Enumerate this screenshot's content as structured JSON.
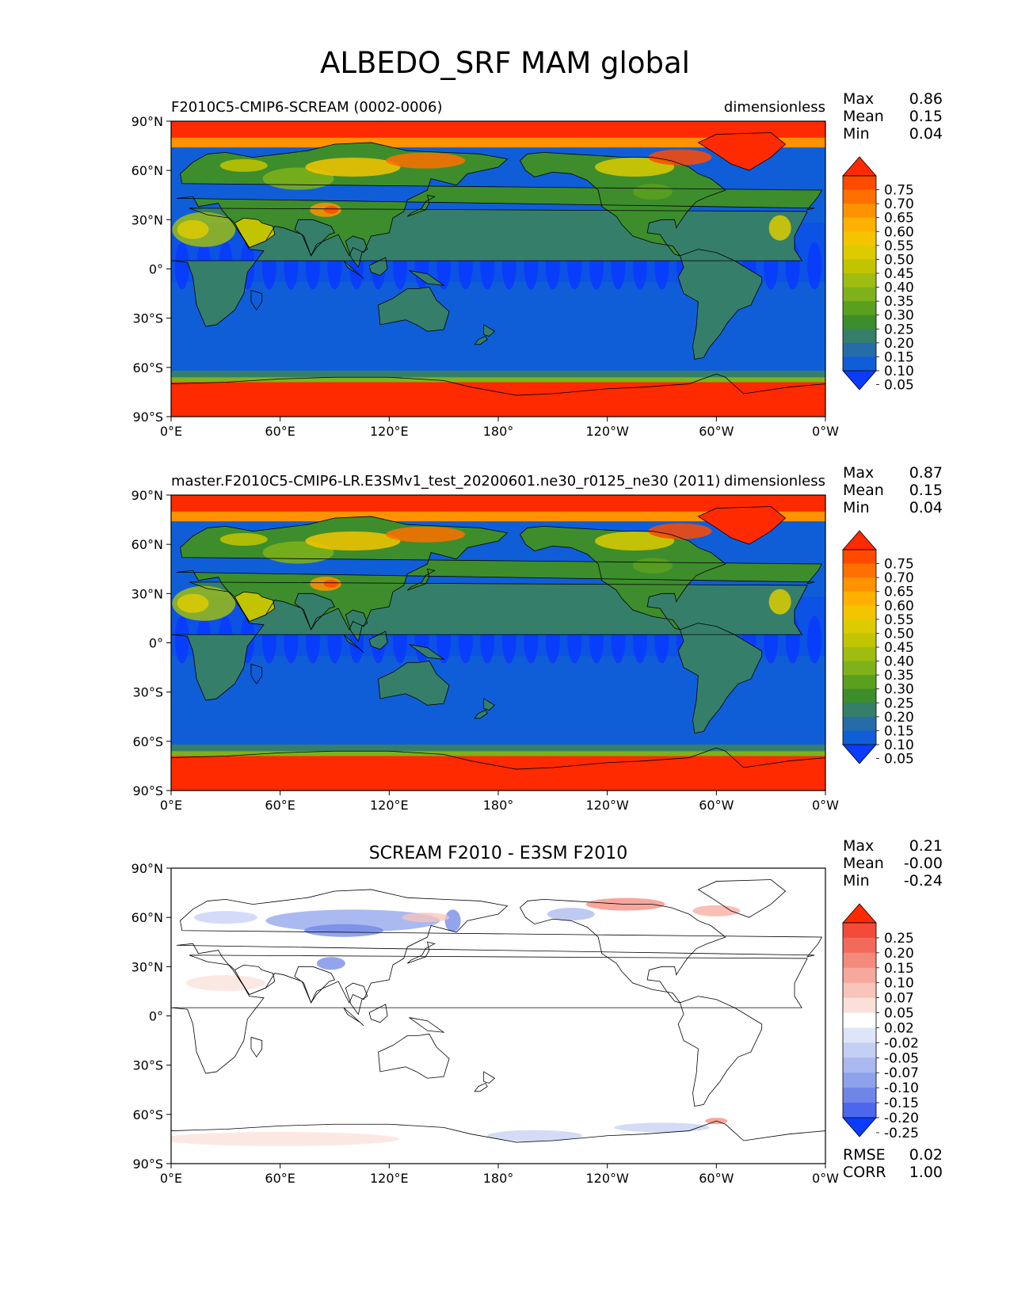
{
  "figure": {
    "title": "ALBEDO_SRF MAM global"
  },
  "chart_data": [
    {
      "type": "heatmap",
      "title_left": "F2010C5-CMIP6-SCREAM (0002-0006)",
      "title_right": "dimensionless",
      "xticks": [
        "0°E",
        "60°E",
        "120°E",
        "180°",
        "120°W",
        "60°W",
        "0°W"
      ],
      "yticks": [
        "90°N",
        "60°N",
        "30°N",
        "0°",
        "30°S",
        "60°S",
        "90°S"
      ],
      "xlim": [
        0,
        360
      ],
      "ylim": [
        -90,
        90
      ],
      "stats": [
        {
          "label": "Max",
          "value": "0.86"
        },
        {
          "label": "Mean",
          "value": "0.15"
        },
        {
          "label": "Min",
          "value": "0.04"
        }
      ],
      "colorbar": {
        "labels": [
          "0.75",
          "0.70",
          "0.65",
          "0.60",
          "0.55",
          "0.50",
          "0.45",
          "0.40",
          "0.35",
          "0.30",
          "0.25",
          "0.20",
          "0.15",
          "0.10",
          "0.05"
        ],
        "colors": [
          "#ff2a00",
          "#ff4a00",
          "#ff7000",
          "#ff9200",
          "#ffb000",
          "#f5c400",
          "#dccb00",
          "#c2c400",
          "#9ebd10",
          "#7fb21a",
          "#5aa01e",
          "#3d8d2c",
          "#357f6a",
          "#256ca8",
          "#0f5ed8",
          "#0a3bff"
        ]
      }
    },
    {
      "type": "heatmap",
      "title_left": "master.F2010C5-CMIP6-LR.E3SMv1_test_20200601.ne30_r0125_ne30 (2011)",
      "title_right": "dimensionless",
      "xticks": [
        "0°E",
        "60°E",
        "120°E",
        "180°",
        "120°W",
        "60°W",
        "0°W"
      ],
      "yticks": [
        "90°N",
        "60°N",
        "30°N",
        "0°",
        "30°S",
        "60°S",
        "90°S"
      ],
      "xlim": [
        0,
        360
      ],
      "ylim": [
        -90,
        90
      ],
      "stats": [
        {
          "label": "Max",
          "value": "0.87"
        },
        {
          "label": "Mean",
          "value": "0.15"
        },
        {
          "label": "Min",
          "value": "0.04"
        }
      ],
      "colorbar": {
        "labels": [
          "0.75",
          "0.70",
          "0.65",
          "0.60",
          "0.55",
          "0.50",
          "0.45",
          "0.40",
          "0.35",
          "0.30",
          "0.25",
          "0.20",
          "0.15",
          "0.10",
          "0.05"
        ],
        "colors": [
          "#ff2a00",
          "#ff4a00",
          "#ff7000",
          "#ff9200",
          "#ffb000",
          "#f5c400",
          "#dccb00",
          "#c2c400",
          "#9ebd10",
          "#7fb21a",
          "#5aa01e",
          "#3d8d2c",
          "#357f6a",
          "#256ca8",
          "#0f5ed8",
          "#0a3bff"
        ]
      }
    },
    {
      "type": "heatmap",
      "title_center": "SCREAM F2010 - E3SM F2010",
      "xticks": [
        "0°E",
        "60°E",
        "120°E",
        "180°",
        "120°W",
        "60°W",
        "0°W"
      ],
      "yticks": [
        "90°N",
        "60°N",
        "30°N",
        "0°",
        "30°S",
        "60°S",
        "90°S"
      ],
      "xlim": [
        0,
        360
      ],
      "ylim": [
        -90,
        90
      ],
      "stats": [
        {
          "label": "Max",
          "value": "0.21"
        },
        {
          "label": "Mean",
          "value": "-0.00"
        },
        {
          "label": "Min",
          "value": "-0.24"
        }
      ],
      "extra_stats": [
        {
          "label": "RMSE",
          "value": "0.02"
        },
        {
          "label": "CORR",
          "value": "1.00"
        }
      ],
      "colorbar": {
        "labels": [
          "0.25",
          "0.20",
          "0.15",
          "0.10",
          "0.07",
          "0.05",
          "0.02",
          "-0.02",
          "-0.05",
          "-0.07",
          "-0.10",
          "-0.15",
          "-0.20",
          "-0.25"
        ],
        "colors": [
          "#ff2a00",
          "#f44a3a",
          "#f26a5a",
          "#f48a7c",
          "#f7a89c",
          "#f9c4bb",
          "#fbe0da",
          "#ffffff",
          "#dfe5f8",
          "#c4cff4",
          "#a9b8ef",
          "#8ea2eb",
          "#6f86e8",
          "#4c66ee",
          "#0a3bff"
        ]
      }
    }
  ]
}
